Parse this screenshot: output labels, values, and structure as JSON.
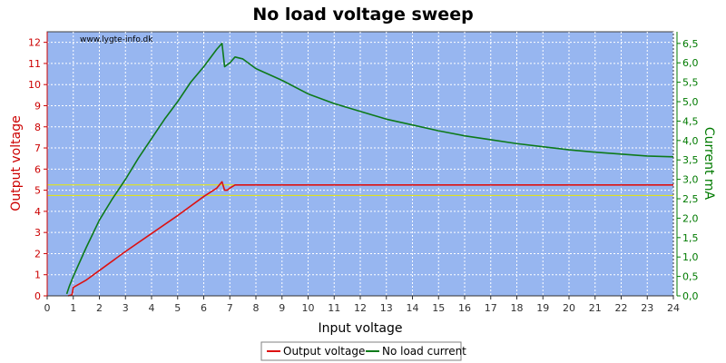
{
  "chart_data": {
    "type": "line",
    "title": "No load voltage sweep",
    "watermark": "www.lygte-info.dk",
    "xlabel": "Input voltage",
    "ylabel": "Output voltage",
    "y2label": "Current mA",
    "xlim": [
      0,
      24
    ],
    "ylim": [
      0,
      12.5
    ],
    "y2lim": [
      0,
      6.8
    ],
    "x_ticks": [
      "0",
      "1",
      "2",
      "3",
      "4",
      "5",
      "6",
      "7",
      "8",
      "9",
      "10",
      "11",
      "12",
      "13",
      "14",
      "15",
      "16",
      "17",
      "18",
      "19",
      "20",
      "21",
      "22",
      "23",
      "24"
    ],
    "y_ticks": [
      "0",
      "1",
      "2",
      "3",
      "4",
      "5",
      "6",
      "7",
      "8",
      "9",
      "10",
      "11",
      "12"
    ],
    "y2_ticks": [
      "0,0",
      "0,5",
      "1,0",
      "1,5",
      "2,0",
      "2,5",
      "3,0",
      "3,5",
      "4,0",
      "4,5",
      "5,0",
      "5,5",
      "6,0",
      "6,5"
    ],
    "grid": true,
    "reference_lines": [
      4.75,
      5.25
    ],
    "legend_position": "bottom-center",
    "colors": {
      "plot_bg": "#97b6f0",
      "grid": "#ffffff",
      "left_axis": "#cc0000",
      "right_axis": "#007a00",
      "output_voltage": "#dd1111",
      "no_load_current": "#0d7a1a",
      "reference": "#e8e800"
    },
    "series": [
      {
        "name": "Output voltage",
        "axis": "left",
        "x": [
          0.8,
          0.95,
          1.0,
          1.5,
          2.0,
          3.0,
          4.0,
          5.0,
          6.0,
          6.5,
          6.7,
          6.8,
          6.9,
          7.0,
          7.2,
          8,
          10,
          12,
          14,
          16,
          18,
          20,
          22,
          24
        ],
        "y": [
          0.0,
          0.05,
          0.4,
          0.75,
          1.2,
          2.1,
          2.95,
          3.8,
          4.7,
          5.1,
          5.4,
          5.0,
          5.0,
          5.1,
          5.25,
          5.25,
          5.25,
          5.25,
          5.25,
          5.25,
          5.25,
          5.25,
          5.25,
          5.25
        ]
      },
      {
        "name": "No load current",
        "axis": "right",
        "x": [
          0.75,
          0.85,
          1.0,
          1.5,
          2.0,
          2.5,
          3.0,
          3.5,
          4.0,
          4.5,
          5.0,
          5.5,
          6.0,
          6.5,
          6.7,
          6.8,
          7.0,
          7.2,
          7.5,
          8,
          9,
          10,
          11,
          12,
          13,
          14,
          15,
          16,
          17,
          18,
          19,
          20,
          21,
          22,
          23,
          24
        ],
        "y": [
          0.05,
          0.25,
          0.5,
          1.25,
          1.95,
          2.5,
          3.0,
          3.55,
          4.05,
          4.55,
          5.0,
          5.5,
          5.9,
          6.35,
          6.5,
          5.9,
          6.0,
          6.15,
          6.1,
          5.85,
          5.55,
          5.2,
          4.95,
          4.75,
          4.55,
          4.4,
          4.25,
          4.12,
          4.02,
          3.92,
          3.84,
          3.76,
          3.7,
          3.65,
          3.6,
          3.58
        ]
      }
    ]
  }
}
